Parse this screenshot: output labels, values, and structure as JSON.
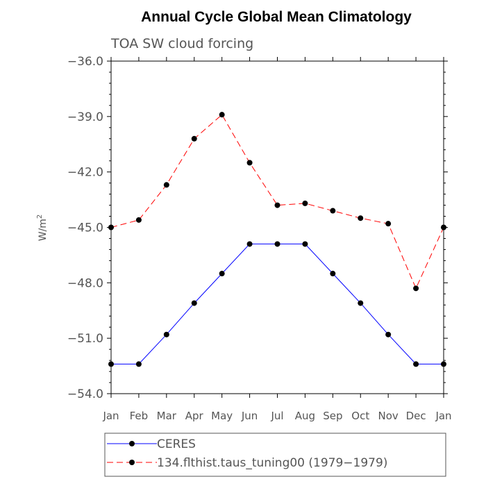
{
  "chart_data": {
    "type": "line",
    "title": "Annual Cycle Global Mean Climatology",
    "subtitle": "TOA SW cloud forcing",
    "xlabel": "",
    "ylabel": "W/m",
    "ylabel_superscript": "2",
    "categories": [
      "Jan",
      "Feb",
      "Mar",
      "Apr",
      "May",
      "Jun",
      "Jul",
      "Aug",
      "Sep",
      "Oct",
      "Nov",
      "Dec",
      "Jan"
    ],
    "ylim": [
      -54.0,
      -36.0
    ],
    "yticks": [
      -54.0,
      -51.0,
      -48.0,
      -45.0,
      -42.0,
      -39.0,
      -36.0
    ],
    "ytick_labels": [
      "−54.0",
      "−51.0",
      "−48.0",
      "−45.0",
      "−42.0",
      "−39.0",
      "−36.0"
    ],
    "grid": false,
    "legend_position": "bottom",
    "series": [
      {
        "name": "CERES",
        "color": "#0000ff",
        "dash": "solid",
        "marker": "circle",
        "values": [
          -52.4,
          -52.4,
          -50.8,
          -49.1,
          -47.5,
          -45.9,
          -45.9,
          -45.9,
          -47.5,
          -49.1,
          -50.8,
          -52.4,
          -52.4
        ]
      },
      {
        "name": "134.flthist.taus_tuning00 (1979−1979)",
        "color": "#ff0000",
        "dash": "dashed",
        "marker": "circle",
        "values": [
          -45.0,
          -44.6,
          -42.7,
          -40.2,
          -38.9,
          -41.5,
          -43.8,
          -43.7,
          -44.1,
          -44.5,
          -44.8,
          -48.3,
          -45.0
        ]
      }
    ]
  }
}
